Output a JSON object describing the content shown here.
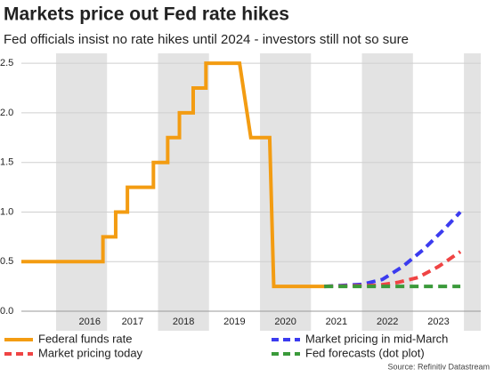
{
  "chart_data": {
    "type": "line",
    "title": "Markets price out Fed rate hikes",
    "subtitle": "Fed officials insist no rate hikes until 2024 - investors still not so sure",
    "source": "Source: Refinitiv Datastream",
    "xlim": [
      2015.32,
      2024.33
    ],
    "xticks": [
      {
        "value": 2016.66,
        "label": "2016"
      },
      {
        "value": 2017.5,
        "label": "2017"
      },
      {
        "value": 2018.5,
        "label": "2018"
      },
      {
        "value": 2019.5,
        "label": "2019"
      },
      {
        "value": 2020.5,
        "label": "2020"
      },
      {
        "value": 2021.5,
        "label": "2021"
      },
      {
        "value": 2022.5,
        "label": "2022"
      },
      {
        "value": 2023.5,
        "label": "2023"
      }
    ],
    "ylim": [
      0,
      2.6
    ],
    "yticks": [
      {
        "value": 0,
        "label": "0.0"
      },
      0.5,
      {
        "value": 1,
        "label": "1.0"
      },
      1.5,
      {
        "value": 2,
        "label": "2.0"
      },
      2.5
    ],
    "grid": true,
    "series": [
      {
        "name": "Federal funds rate",
        "color": "#f39c12",
        "dashed": false,
        "x": [
          2015.32,
          2016.92,
          2016.92,
          2017.17,
          2017.17,
          2017.4,
          2017.4,
          2017.91,
          2017.91,
          2018.19,
          2018.19,
          2018.42,
          2018.42,
          2018.69,
          2018.69,
          2018.94,
          2018.94,
          2019.6,
          2019.82,
          2020.19,
          2020.27,
          2021.26
        ],
        "values": [
          0.5,
          0.5,
          0.75,
          0.75,
          1.0,
          1.0,
          1.25,
          1.25,
          1.5,
          1.5,
          1.75,
          1.75,
          2.0,
          2.0,
          2.25,
          2.25,
          2.5,
          2.5,
          1.75,
          1.75,
          0.25,
          0.25
        ]
      },
      {
        "name": "Market pricing in mid-March",
        "color": "#3b3bef",
        "dashed": true,
        "x": [
          2021.26,
          2022.0,
          2022.4,
          2022.8,
          2023.2,
          2023.6,
          2023.93
        ],
        "values": [
          0.25,
          0.27,
          0.32,
          0.45,
          0.62,
          0.82,
          1.0
        ]
      },
      {
        "name": "Market pricing today",
        "color": "#ef4444",
        "dashed": true,
        "x": [
          2021.26,
          2022.3,
          2022.7,
          2023.1,
          2023.5,
          2023.93
        ],
        "values": [
          0.25,
          0.26,
          0.29,
          0.34,
          0.45,
          0.6
        ]
      },
      {
        "name": "Fed forecasts (dot plot)",
        "color": "#3a9a3a",
        "dashed": true,
        "x": [
          2021.26,
          2023.93
        ],
        "values": [
          0.25,
          0.25
        ]
      }
    ]
  }
}
